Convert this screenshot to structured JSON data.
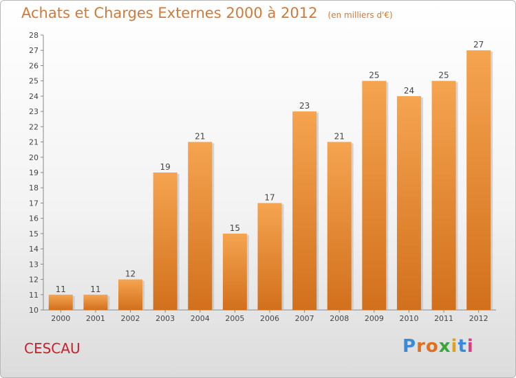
{
  "chart_data": {
    "type": "bar",
    "title": "Achats et Charges Externes 2000 à 2012",
    "subtitle": "(en milliers d'€)",
    "categories": [
      "2000",
      "2001",
      "2002",
      "2003",
      "2004",
      "2005",
      "2006",
      "2007",
      "2008",
      "2009",
      "2010",
      "2011",
      "2012"
    ],
    "values": [
      11,
      11,
      12,
      19,
      21,
      15,
      17,
      23,
      21,
      25,
      24,
      25,
      27
    ],
    "ylim": [
      10,
      28
    ],
    "yticks": [
      "10",
      "11",
      "12",
      "13",
      "14",
      "15",
      "16",
      "17",
      "18",
      "19",
      "20",
      "21",
      "22",
      "23",
      "24",
      "25",
      "26",
      "27",
      "28"
    ],
    "xlabel": "",
    "ylabel": "",
    "grid": false,
    "bar_color_top": "#f5a450",
    "bar_color_bottom": "#d2701c"
  },
  "commune": "CESCAU",
  "logo": {
    "letters": [
      "P",
      "r",
      "o",
      "x",
      "i",
      "t",
      "i"
    ],
    "colors": [
      "#3a8bd6",
      "#e07020",
      "#e07020",
      "#3aa63a",
      "#e0a020",
      "#3a8bd6",
      "#e03a8a"
    ]
  }
}
